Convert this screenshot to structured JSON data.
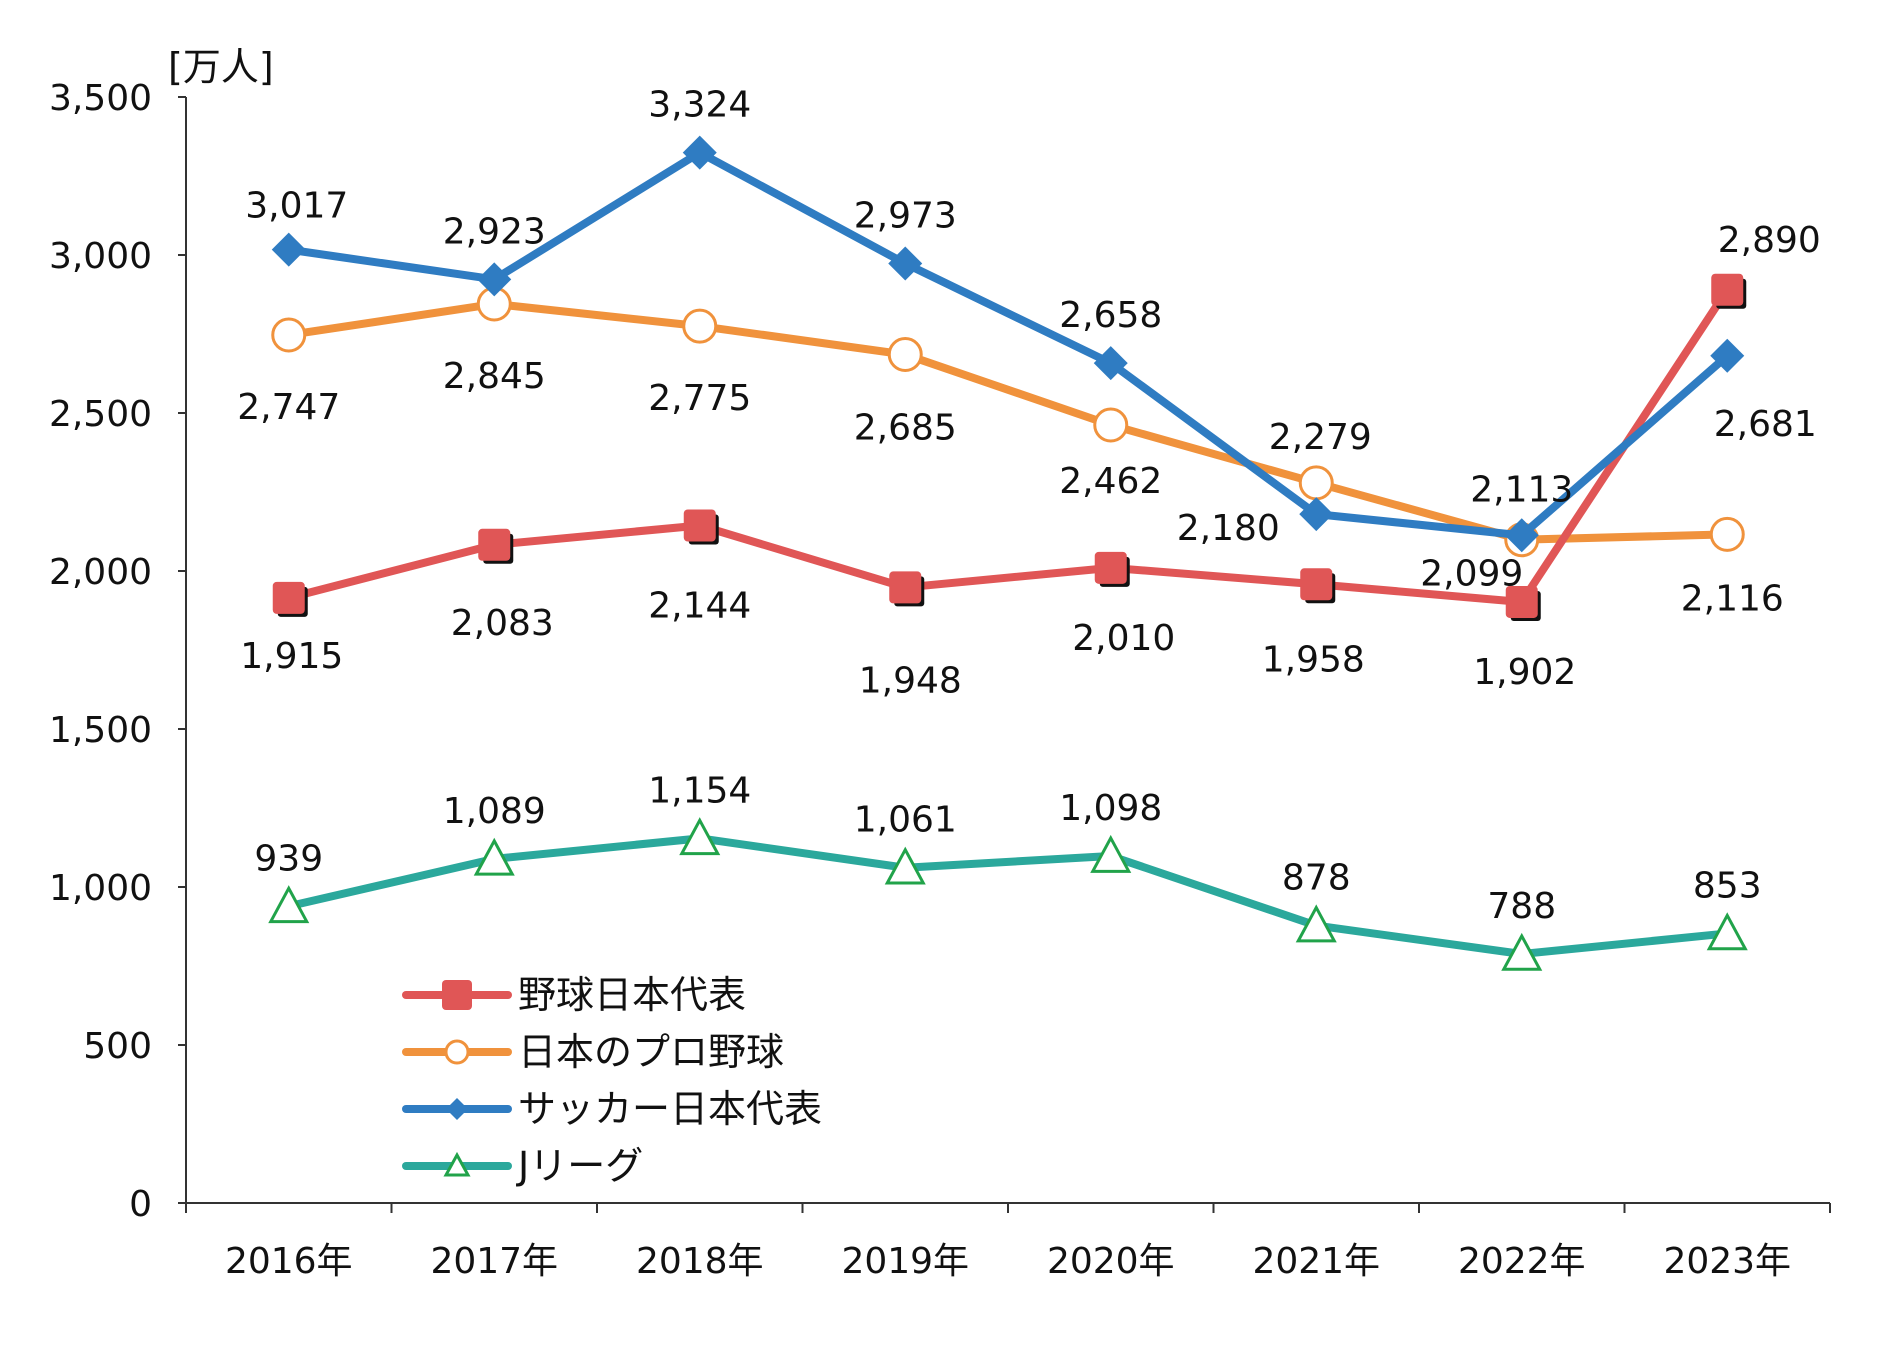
{
  "chart_data": {
    "type": "line",
    "title": "",
    "ylabel": "[万人]",
    "xlabel": "",
    "categories": [
      "2016年",
      "2017年",
      "2018年",
      "2019年",
      "2020年",
      "2021年",
      "2022年",
      "2023年"
    ],
    "ylim": [
      0,
      3500
    ],
    "yticks": [
      0,
      500,
      1000,
      1500,
      2000,
      2500,
      3000,
      3500
    ],
    "ytick_labels": [
      "0",
      "500",
      "1,000",
      "1,500",
      "2,000",
      "2,500",
      "3,000",
      "3,500"
    ],
    "grid": false,
    "legend_position": "bottom-left",
    "series": [
      {
        "name": "野球日本代表",
        "color": "#e05656",
        "marker": "square",
        "values": [
          1915,
          2083,
          2144,
          1948,
          2010,
          1958,
          1902,
          2890
        ],
        "labels": [
          "1,915",
          "2,083",
          "2,144",
          "1,948",
          "2,010",
          "1,958",
          "1,902",
          "2,890"
        ]
      },
      {
        "name": "日本のプロ野球",
        "color": "#f0923c",
        "marker": "circle-open",
        "values": [
          2747,
          2845,
          2775,
          2685,
          2462,
          2279,
          2099,
          2116
        ],
        "labels": [
          "2,747",
          "2,845",
          "2,775",
          "2,685",
          "2,462",
          "2,279",
          "2,099",
          "2,116"
        ]
      },
      {
        "name": "サッカー日本代表",
        "color": "#2f7cc2",
        "marker": "diamond",
        "values": [
          3017,
          2923,
          3324,
          2973,
          2658,
          2180,
          2113,
          2681
        ],
        "labels": [
          "3,017",
          "2,923",
          "3,324",
          "2,973",
          "2,658",
          "2,180",
          "2,113",
          "2,681"
        ]
      },
      {
        "name": "Jリーグ",
        "color": "#2ba89c",
        "marker_color": "#21a34a",
        "marker": "triangle-open",
        "values": [
          939,
          1089,
          1154,
          1061,
          1098,
          878,
          788,
          853
        ],
        "labels": [
          "939",
          "1,089",
          "1,154",
          "1,061",
          "1,098",
          "878",
          "788",
          "853"
        ]
      }
    ]
  }
}
